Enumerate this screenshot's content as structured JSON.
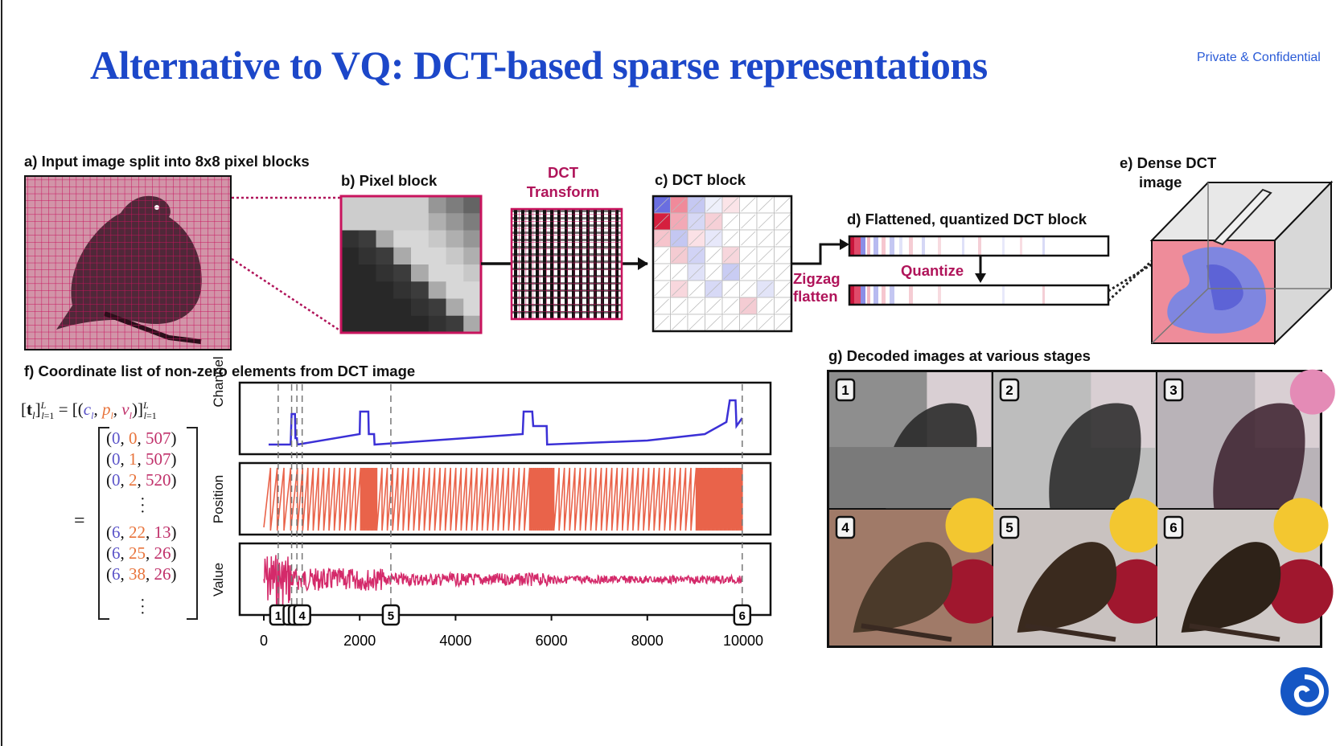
{
  "slide": {
    "title": "Alternative to VQ: DCT-based sparse representations",
    "confidentiality": "Private & Confidential",
    "logo_icon": "swirl-logo-icon"
  },
  "panels": {
    "a": "a) Input image split into 8x8 pixel blocks",
    "b": "b) Pixel block",
    "dct_transform_line1": "DCT",
    "dct_transform_line2": "Transform",
    "c": "c) DCT block",
    "d": "d) Flattened, quantized DCT block",
    "zigzag_line1": "Zigzag",
    "zigzag_line2": "flatten",
    "quantize": "Quantize",
    "e_line1": "e) Dense DCT",
    "e_line2": "image",
    "f": "f) Coordinate list of non-zero elements from DCT image",
    "g": "g) Decoded images at various stages"
  },
  "coordinate_list": {
    "rows": [
      {
        "c": "0",
        "p": "0",
        "v": "507"
      },
      {
        "c": "0",
        "p": "1",
        "v": "507"
      },
      {
        "c": "0",
        "p": "2",
        "v": "520"
      },
      {
        "c": "6",
        "p": "22",
        "v": "13"
      },
      {
        "c": "6",
        "p": "25",
        "v": "26"
      },
      {
        "c": "6",
        "p": "38",
        "v": "26"
      }
    ],
    "colors": {
      "c": "#5b54c9",
      "p": "#e8743c",
      "v": "#c0306a"
    }
  },
  "chart_data": {
    "type": "line",
    "x_ticks": [
      "0",
      "2000",
      "4000",
      "6000",
      "8000",
      "10000"
    ],
    "xlim": [
      0,
      10000
    ],
    "panels": [
      {
        "ylabel": "Channel",
        "color": "#3b30d6"
      },
      {
        "ylabel": "Position",
        "color": "#e9634a"
      },
      {
        "ylabel": "Value",
        "color": "#d42a6a"
      }
    ],
    "stage_markers": [
      {
        "label": "1",
        "x": 300
      },
      {
        "label": "2",
        "x": 580
      },
      {
        "label": "3",
        "x": 690
      },
      {
        "label": "4",
        "x": 800
      },
      {
        "label": "5",
        "x": 2650
      },
      {
        "label": "6",
        "x": 9980
      }
    ],
    "grid": false
  },
  "decoded_images": {
    "labels": [
      "1",
      "2",
      "3",
      "4",
      "5",
      "6"
    ]
  }
}
